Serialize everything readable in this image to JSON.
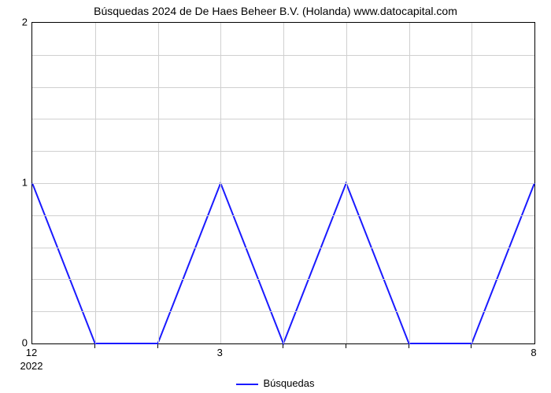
{
  "chart": {
    "type": "line",
    "title": "Búsquedas 2024 de De Haes Beheer B.V. (Holanda) www.datocapital.com",
    "title_fontsize": 14,
    "background_color": "#ffffff",
    "grid_color": "#d0d0d0",
    "axis_color": "#000000",
    "line_color": "#1a1aff",
    "line_width": 2,
    "ylim": [
      0,
      2
    ],
    "ytick_major": [
      0,
      1,
      2
    ],
    "ytick_minor_count_between": 4,
    "x_major_labels": [
      "12",
      "3",
      "8"
    ],
    "x_major_positions": [
      0,
      3,
      8
    ],
    "x_total_span": 8,
    "x_minor_tick_positions": [
      1,
      2,
      4,
      5,
      6,
      7
    ],
    "year_label": "2022",
    "label_fontsize": 13,
    "legend_label": "Búsquedas",
    "series": {
      "x": [
        0,
        1,
        2,
        3,
        4,
        5,
        6,
        7,
        8
      ],
      "y": [
        1,
        0,
        0,
        1,
        0,
        1,
        0,
        0,
        1
      ]
    }
  }
}
